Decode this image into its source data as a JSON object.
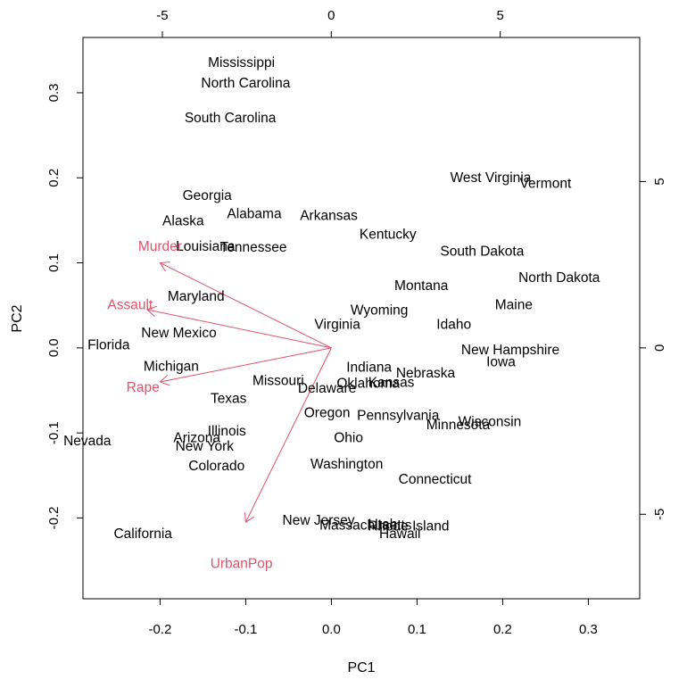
{
  "chart_data": {
    "type": "scatter",
    "subtype": "biplot",
    "xlabel": "PC1",
    "ylabel": "PC2",
    "xlim": [
      -0.29,
      0.36
    ],
    "ylim": [
      -0.295,
      0.365
    ],
    "x_ticks": [
      "-0.2",
      "-0.1",
      "0.0",
      "0.1",
      "0.2",
      "0.3"
    ],
    "x_tick_values": [
      -0.2,
      -0.1,
      0.0,
      0.1,
      0.2,
      0.3
    ],
    "y_ticks": [
      "-0.2",
      "-0.1",
      "0.0",
      "0.1",
      "0.2",
      "0.3"
    ],
    "y_tick_values": [
      -0.2,
      -0.1,
      0.0,
      0.1,
      0.2,
      0.3
    ],
    "top_axis": {
      "lim": [
        -7.35,
        9.13
      ],
      "ticks": [
        "-5",
        "0",
        "5"
      ],
      "tick_values": [
        -5,
        0,
        5
      ]
    },
    "right_axis": {
      "lim": [
        -7.54,
        9.33
      ],
      "ticks": [
        "-5",
        "0",
        "5"
      ],
      "tick_values": [
        -5,
        0,
        5
      ]
    },
    "grid": false,
    "arrow_color": "#DF536B",
    "text_color": "#000000",
    "points": [
      {
        "label": "Mississippi",
        "x": -0.105,
        "y": 0.335
      },
      {
        "label": "North Carolina",
        "x": -0.1,
        "y": 0.311
      },
      {
        "label": "South Carolina",
        "x": -0.118,
        "y": 0.27
      },
      {
        "label": "Georgia",
        "x": -0.145,
        "y": 0.179
      },
      {
        "label": "Alaska",
        "x": -0.173,
        "y": 0.149
      },
      {
        "label": "Alabama",
        "x": -0.09,
        "y": 0.157
      },
      {
        "label": "Arkansas",
        "x": -0.003,
        "y": 0.155
      },
      {
        "label": "Kentucky",
        "x": 0.066,
        "y": 0.133
      },
      {
        "label": "West Virginia",
        "x": 0.186,
        "y": 0.2
      },
      {
        "label": "Vermont",
        "x": 0.25,
        "y": 0.193
      },
      {
        "label": "Louisiana",
        "x": -0.147,
        "y": 0.119
      },
      {
        "label": "Tennessee",
        "x": -0.091,
        "y": 0.118
      },
      {
        "label": "South Dakota",
        "x": 0.176,
        "y": 0.113
      },
      {
        "label": "North Dakota",
        "x": 0.266,
        "y": 0.082
      },
      {
        "label": "Murder",
        "x": -0.2,
        "y": 0.119
      },
      {
        "label": "Montana",
        "x": 0.105,
        "y": 0.073
      },
      {
        "label": "Maryland",
        "x": -0.158,
        "y": 0.06
      },
      {
        "label": "Assault",
        "x": -0.235,
        "y": 0.05
      },
      {
        "label": "Maine",
        "x": 0.213,
        "y": 0.05
      },
      {
        "label": "Wyoming",
        "x": 0.056,
        "y": 0.044
      },
      {
        "label": "Virginia",
        "x": 0.007,
        "y": 0.027
      },
      {
        "label": "Idaho",
        "x": 0.143,
        "y": 0.027
      },
      {
        "label": "New Mexico",
        "x": -0.178,
        "y": 0.017
      },
      {
        "label": "Florida",
        "x": -0.26,
        "y": 0.003
      },
      {
        "label": "New Hampshire",
        "x": 0.209,
        "y": -0.003
      },
      {
        "label": "Iowa",
        "x": 0.198,
        "y": -0.017
      },
      {
        "label": "Michigan",
        "x": -0.187,
        "y": -0.022
      },
      {
        "label": "Indiana",
        "x": 0.044,
        "y": -0.023
      },
      {
        "label": "Nebraska",
        "x": 0.11,
        "y": -0.03
      },
      {
        "label": "Missouri",
        "x": -0.062,
        "y": -0.039
      },
      {
        "label": "Oklahoma",
        "x": 0.043,
        "y": -0.042
      },
      {
        "label": "Kansas",
        "x": 0.07,
        "y": -0.041
      },
      {
        "label": "Delaware",
        "x": -0.005,
        "y": -0.048
      },
      {
        "label": "Rape",
        "x": -0.22,
        "y": -0.047
      },
      {
        "label": "Texas",
        "x": -0.12,
        "y": -0.06
      },
      {
        "label": "Oregon",
        "x": -0.005,
        "y": -0.077
      },
      {
        "label": "Pennsylvania",
        "x": 0.078,
        "y": -0.08
      },
      {
        "label": "Wisconsin",
        "x": 0.185,
        "y": -0.087
      },
      {
        "label": "Minnesota",
        "x": 0.148,
        "y": -0.091
      },
      {
        "label": "Illinois",
        "x": -0.122,
        "y": -0.098
      },
      {
        "label": "Arizona",
        "x": -0.157,
        "y": -0.106
      },
      {
        "label": "Ohio",
        "x": 0.02,
        "y": -0.106
      },
      {
        "label": "Nevada",
        "x": -0.285,
        "y": -0.11
      },
      {
        "label": "New York",
        "x": -0.148,
        "y": -0.116
      },
      {
        "label": "Colorado",
        "x": -0.134,
        "y": -0.139
      },
      {
        "label": "Washington",
        "x": 0.018,
        "y": -0.137
      },
      {
        "label": "Connecticut",
        "x": 0.121,
        "y": -0.155
      },
      {
        "label": "New Jersey",
        "x": -0.015,
        "y": -0.203
      },
      {
        "label": "Massachusetts",
        "x": 0.04,
        "y": -0.209
      },
      {
        "label": "Utah",
        "x": 0.06,
        "y": -0.208
      },
      {
        "label": "Rhode Island",
        "x": 0.09,
        "y": -0.21
      },
      {
        "label": "Hawaii",
        "x": 0.08,
        "y": -0.219
      },
      {
        "label": "California",
        "x": -0.22,
        "y": -0.219
      },
      {
        "label": "UrbanPop",
        "x": -0.105,
        "y": -0.254
      }
    ],
    "loadings": [
      {
        "label": "Murder",
        "x": -0.2,
        "y": 0.1
      },
      {
        "label": "Assault",
        "x": -0.215,
        "y": 0.045
      },
      {
        "label": "Rape",
        "x": -0.2,
        "y": -0.04
      },
      {
        "label": "UrbanPop",
        "x": -0.1,
        "y": -0.205
      }
    ]
  }
}
